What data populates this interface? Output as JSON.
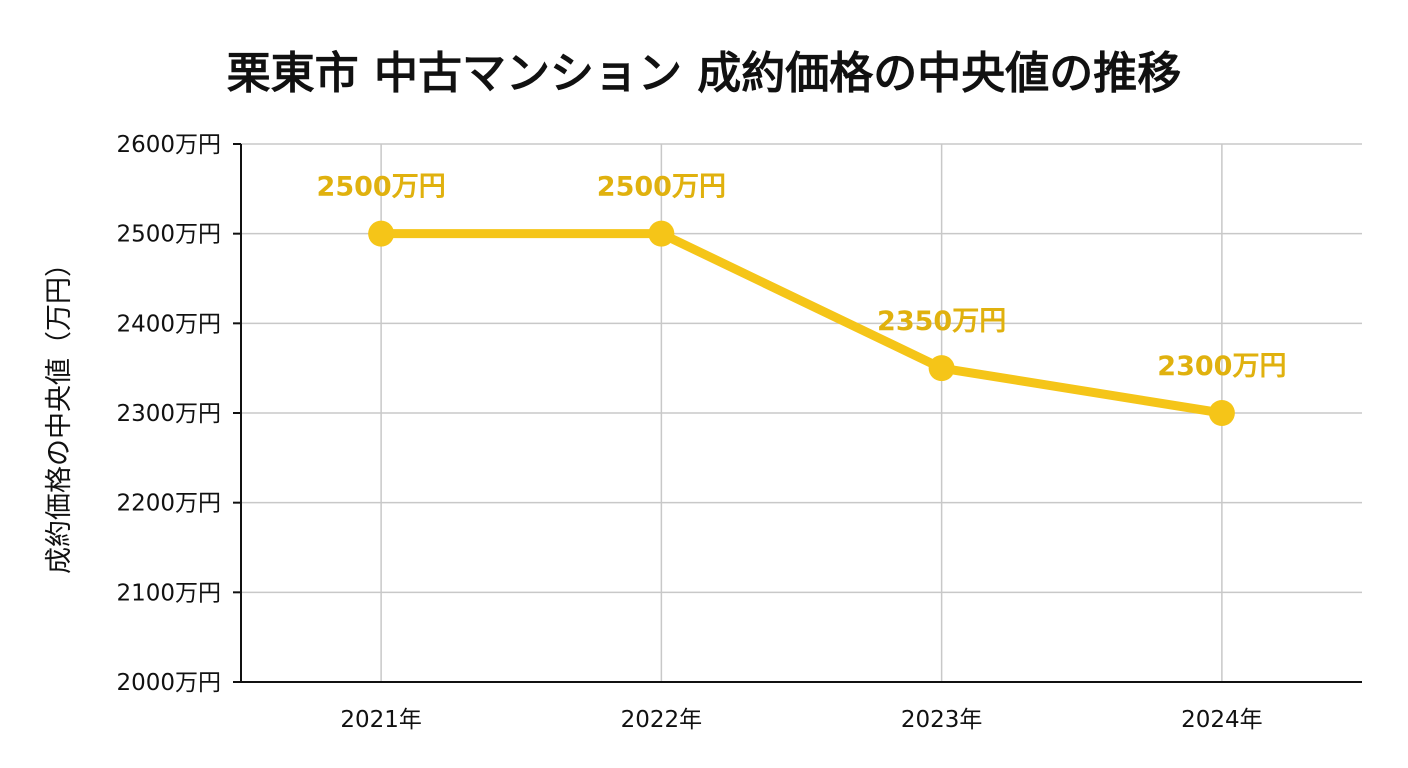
{
  "chart_data": {
    "type": "line",
    "title": "栗東市 中古マンション 成約価格の中央値の推移",
    "xlabel": "",
    "ylabel": "成約価格の中央値（万円）",
    "categories": [
      "2021年",
      "2022年",
      "2023年",
      "2024年"
    ],
    "series": [
      {
        "values": [
          2500,
          2500,
          2350,
          2300
        ],
        "data_labels": [
          "2500万円",
          "2500万円",
          "2350万円",
          "2300万円"
        ],
        "color": "#F5C518"
      }
    ],
    "ylim": [
      2000,
      2600
    ],
    "yticks": [
      2000,
      2100,
      2200,
      2300,
      2400,
      2500,
      2600
    ],
    "ytick_labels": [
      "2000万円",
      "2100万円",
      "2200万円",
      "2300万円",
      "2400万円",
      "2500万円",
      "2600万円"
    ],
    "grid": true,
    "legend": "none",
    "label_color": "#E0B10E"
  }
}
